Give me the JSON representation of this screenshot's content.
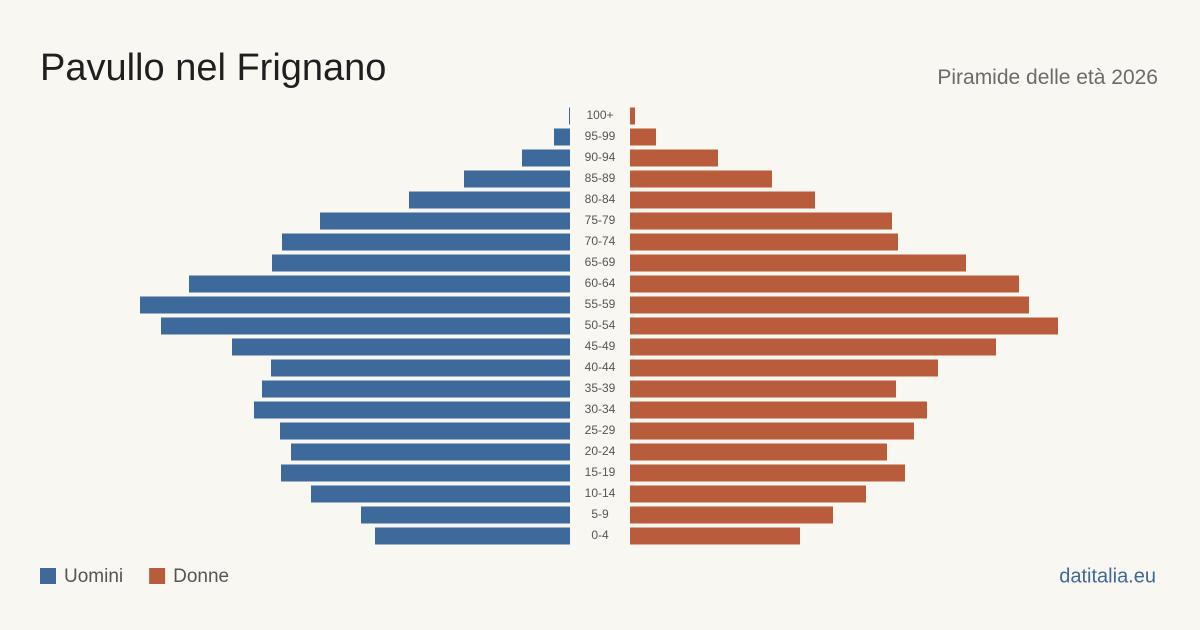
{
  "chart_data": {
    "type": "pyramid",
    "title": "Pavullo nel Frignano",
    "subtitle": "Piramide delle età 2026",
    "source": "datitalia.eu",
    "categories": [
      "0-4",
      "5-9",
      "10-14",
      "15-19",
      "20-24",
      "25-29",
      "30-34",
      "35-39",
      "40-44",
      "45-49",
      "50-54",
      "55-59",
      "60-64",
      "65-69",
      "70-74",
      "75-79",
      "80-84",
      "85-89",
      "90-94",
      "95-99",
      "100+"
    ],
    "series": [
      {
        "name": "Uomini",
        "color": "#3d6a9a",
        "values": [
          195,
          209,
          259,
          289,
          279,
          290,
          316,
          308,
          299,
          338,
          409,
          430,
          381,
          298,
          288,
          250,
          161,
          106,
          48,
          16,
          1
        ]
      },
      {
        "name": "Donne",
        "color": "#b95c3b",
        "values": [
          170,
          203,
          236,
          275,
          257,
          284,
          297,
          266,
          308,
          366,
          428,
          399,
          389,
          336,
          268,
          262,
          185,
          142,
          88,
          26,
          5
        ]
      }
    ]
  }
}
